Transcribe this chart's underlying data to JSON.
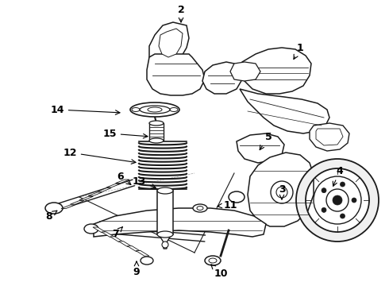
{
  "bg_color": "#ffffff",
  "line_color": "#1a1a1a",
  "figsize": [
    4.9,
    3.6
  ],
  "dpi": 100,
  "annots": [
    [
      "1",
      378,
      60,
      368,
      78
    ],
    [
      "2",
      228,
      12,
      228,
      32
    ],
    [
      "3",
      355,
      238,
      355,
      252
    ],
    [
      "4",
      428,
      215,
      418,
      238
    ],
    [
      "5",
      338,
      172,
      325,
      192
    ],
    [
      "6",
      152,
      222,
      168,
      235
    ],
    [
      "7",
      145,
      295,
      155,
      285
    ],
    [
      "8",
      62,
      272,
      75,
      263
    ],
    [
      "9",
      172,
      342,
      172,
      328
    ],
    [
      "10",
      278,
      345,
      265,
      332
    ],
    [
      "11",
      290,
      258,
      270,
      260
    ],
    [
      "12",
      88,
      192,
      175,
      205
    ],
    [
      "13",
      175,
      228,
      200,
      238
    ],
    [
      "14",
      72,
      138,
      155,
      142
    ],
    [
      "15",
      138,
      168,
      190,
      172
    ]
  ]
}
